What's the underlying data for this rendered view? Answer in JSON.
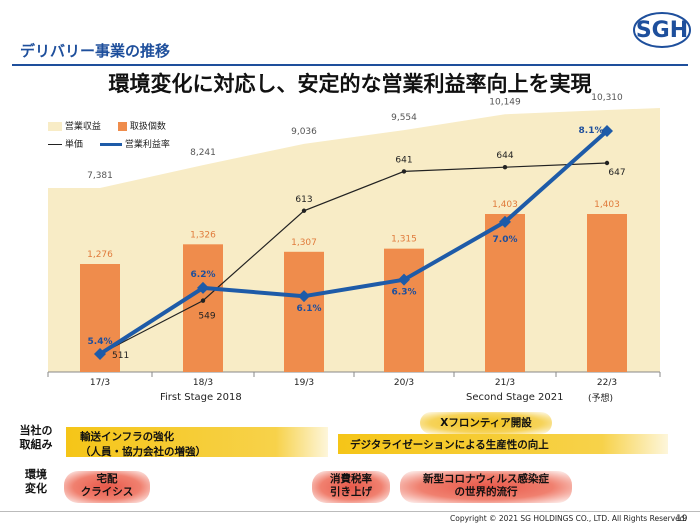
{
  "header": {
    "title": "デリバリー事業の推移",
    "logo": "SGH"
  },
  "headline": "環境変化に対応し、安定的な営業利益率向上を実現",
  "legend": {
    "revenue": "営業収益",
    "parcels": "取扱個数",
    "unit_price": "単価",
    "op_margin": "営業利益率"
  },
  "colors": {
    "revenue_area": "#f8ecc6",
    "bars": "#ef8c4c",
    "margin_line": "#1e5ba8",
    "price_line": "#222222",
    "accent_title": "#1e4f9c"
  },
  "chart_data": {
    "type": "bar",
    "categories": [
      "17/3",
      "18/3",
      "19/3",
      "20/3",
      "21/3",
      "22/3"
    ],
    "category_notes": [
      "",
      "",
      "",
      "",
      "",
      "(予想)"
    ],
    "series": [
      {
        "name": "営業収益",
        "kind": "area",
        "values": [
          7381,
          8241,
          9036,
          9554,
          10149,
          10310
        ],
        "labels": [
          "7,381",
          "8,241",
          "9,036",
          "9,554",
          "10,149",
          "10,310"
        ]
      },
      {
        "name": "取扱個数",
        "kind": "bar",
        "values": [
          1276,
          1326,
          1307,
          1315,
          1403,
          1403
        ],
        "labels": [
          "1,276",
          "1,326",
          "1,307",
          "1,315",
          "1,403",
          "1,403"
        ]
      },
      {
        "name": "単価",
        "kind": "line",
        "values": [
          511,
          549,
          613,
          641,
          644,
          647
        ],
        "labels": [
          "511",
          "549",
          "613",
          "641",
          "644",
          "647"
        ]
      },
      {
        "name": "営業利益率",
        "kind": "line",
        "values": [
          5.4,
          6.2,
          6.1,
          6.3,
          7.0,
          8.1
        ],
        "labels": [
          "5.4%",
          "6.2%",
          "6.1%",
          "6.3%",
          "7.0%",
          "8.1%"
        ]
      }
    ],
    "stages": [
      "First Stage 2018",
      "Second Stage 2021"
    ],
    "grid": false,
    "legend_position": "top-left"
  },
  "initiatives": {
    "label_line1": "当社の",
    "label_line2": "取組み",
    "band1_line1": "輸送インフラの強化",
    "band1_line2": "（人員・協力会社の増強）",
    "frontier": "Xフロンティア開設",
    "band2": "デジタライゼーションによる生産性の向上"
  },
  "environment": {
    "label_line1": "環境",
    "label_line2": "変化",
    "pill1_line1": "宅配",
    "pill1_line2": "クライシス",
    "pill2_line1": "消費税率",
    "pill2_line2": "引き上げ",
    "pill3_line1": "新型コロナウィルス感染症",
    "pill3_line2": "の世界的流行"
  },
  "footer": {
    "copyright": "Copyright © 2021 SG HOLDINGS CO., LTD.  All Rights Reserved.",
    "page": "19"
  }
}
